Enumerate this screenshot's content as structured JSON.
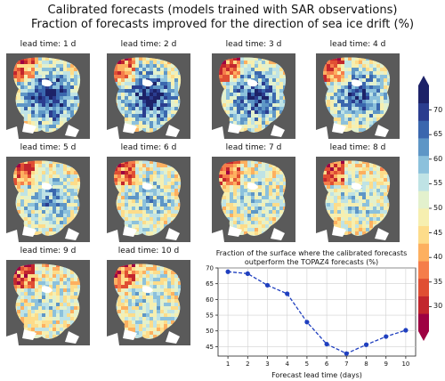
{
  "figure": {
    "title_line1": "Calibrated forecasts (models trained with SAR observations)",
    "title_line2": "Fraction of forecasts improved for the direction of sea ice drift (%)"
  },
  "maps": [
    {
      "label": "lead time: 1 d",
      "cool_bias": 0.65
    },
    {
      "label": "lead time: 2 d",
      "cool_bias": 0.6
    },
    {
      "label": "lead time: 3 d",
      "cool_bias": 0.55
    },
    {
      "label": "lead time: 4 d",
      "cool_bias": 0.5
    },
    {
      "label": "lead time: 5 d",
      "cool_bias": 0.35
    },
    {
      "label": "lead time: 6 d",
      "cool_bias": 0.28
    },
    {
      "label": "lead time: 7 d",
      "cool_bias": 0.25
    },
    {
      "label": "lead time: 8 d",
      "cool_bias": 0.25
    },
    {
      "label": "lead time: 9 d",
      "cool_bias": 0.2
    },
    {
      "label": "lead time: 10 d",
      "cool_bias": 0.22
    }
  ],
  "colorbar": {
    "ticks": [
      "70",
      "65",
      "60",
      "55",
      "50",
      "45",
      "40",
      "35",
      "30"
    ],
    "colors": [
      "#9e0142",
      "#c2262d",
      "#e04f33",
      "#f57d4a",
      "#fdb060",
      "#fddc8a",
      "#f6efb0",
      "#e3f1cd",
      "#bfe3e5",
      "#8cc1dc",
      "#5e96c6",
      "#3a67ae",
      "#2b3d8f",
      "#1d2268"
    ],
    "range": [
      25,
      75
    ]
  },
  "chart_data": {
    "type": "line",
    "title": "Fraction of the surface where the calibrated forecasts outperform the TOPAZ4 forecasts (%)",
    "title_line1": "Fraction of the surface where the calibrated forecasts",
    "title_line2": "outperform the TOPAZ4 forecasts (%)",
    "xlabel": "Forecast lead time (days)",
    "ylabel": "",
    "x": [
      1,
      2,
      3,
      4,
      5,
      6,
      7,
      8,
      9,
      10
    ],
    "y": [
      68.8,
      68.2,
      64.5,
      61.8,
      52.8,
      45.8,
      42.8,
      45.6,
      48.2,
      50.2
    ],
    "xticks": [
      "1",
      "2",
      "3",
      "4",
      "5",
      "6",
      "7",
      "8",
      "9",
      "10"
    ],
    "yticks": [
      "45",
      "50",
      "55",
      "60",
      "65",
      "70"
    ],
    "xlim": [
      0.5,
      10.5
    ],
    "ylim": [
      42,
      70
    ],
    "grid": true,
    "color": "#1f3fbf"
  }
}
